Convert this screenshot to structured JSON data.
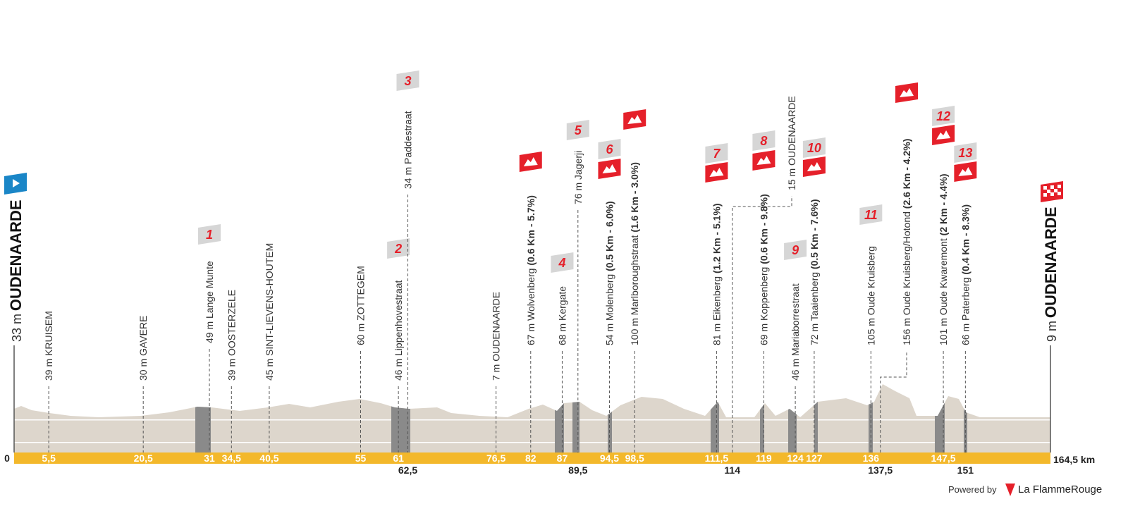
{
  "start": {
    "elevation": "33 m",
    "name": "OUDENAARDE"
  },
  "finish": {
    "elevation": "9 m",
    "name": "OUDENAARDE"
  },
  "axis": {
    "start": "0",
    "end": "164,5 km"
  },
  "waypoints": [
    {
      "km": "5,5",
      "elevation": "39 m",
      "name": "KRUISEM"
    },
    {
      "km": "20,5",
      "elevation": "30 m",
      "name": "GAVERE"
    },
    {
      "km": "31",
      "elevation": "49 m",
      "name": "Lange Munte",
      "marker": "1"
    },
    {
      "km": "34,5",
      "elevation": "39 m",
      "name": "OOSTERZELE"
    },
    {
      "km": "40,5",
      "elevation": "45 m",
      "name": "SINT-LIEVENS-HOUTEM"
    },
    {
      "km": "55",
      "elevation": "60 m",
      "name": "ZOTTEGEM"
    },
    {
      "km": "61",
      "elevation": "46 m",
      "name": "Lippenhovestraat",
      "marker": "2"
    },
    {
      "km": "62,5",
      "elevation": "34 m",
      "name": "Paddestraat",
      "marker": "3"
    },
    {
      "km": "76,5",
      "elevation": "7 m",
      "name": "OUDENAARDE"
    },
    {
      "km": "82",
      "elevation": "67 m",
      "name": "Wolvenberg",
      "detail": "(0.6 Km - 5.7%)"
    },
    {
      "km": "87",
      "elevation": "68 m",
      "name": "Kergate",
      "marker": "4"
    },
    {
      "km": "89,5",
      "elevation": "76 m",
      "name": "Jagerji",
      "marker": "5"
    },
    {
      "km": "94,5",
      "elevation": "54 m",
      "name": "Molenberg",
      "detail": "(0.5 Km - 6.0%)",
      "marker": "6"
    },
    {
      "km": "98,5",
      "elevation": "100 m",
      "name": "Marlboroughstraat",
      "detail": "(1.6 Km - 3.0%)"
    },
    {
      "km": "111,5",
      "elevation": "81 m",
      "name": "Eikenberg",
      "detail": "(1.2 Km - 5.1%)",
      "marker": "7"
    },
    {
      "km": "114",
      "elevation": "15 m",
      "name": "OUDENAARDE"
    },
    {
      "km": "119",
      "elevation": "69 m",
      "name": "Koppenberg",
      "detail": "(0.6 Km - 9.8%)",
      "marker": "8"
    },
    {
      "km": "124",
      "elevation": "46 m",
      "name": "Mariaborrestraat",
      "marker": "9"
    },
    {
      "km": "127",
      "elevation": "72 m",
      "name": "Taaienberg",
      "detail": "(0.5 Km - 7.6%)",
      "marker": "10"
    },
    {
      "km": "136",
      "elevation": "105 m",
      "name": "Oude Kruisberg",
      "marker": "11"
    },
    {
      "km": "137,5",
      "elevation": "156 m",
      "name": "Oude Kruisberg/Hotond",
      "detail": "(2.6 Km - 4.2%)"
    },
    {
      "km": "147,5",
      "elevation": "101 m",
      "name": "Oude Kwaremont",
      "detail": "(2 Km - 4.4%)",
      "marker": "12"
    },
    {
      "km": "151",
      "elevation": "66 m",
      "name": "Paterberg",
      "detail": "(0.4 Km - 8.3%)",
      "marker": "13"
    }
  ],
  "footer": {
    "powered": "Powered by",
    "brand": "La FlammeRouge"
  }
}
